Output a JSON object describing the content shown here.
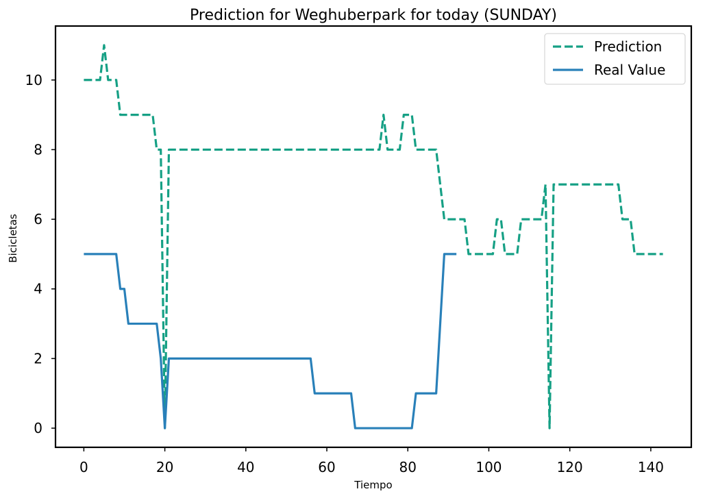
{
  "chart_data": {
    "type": "line",
    "title": "Prediction for Weghuberpark for today (SUNDAY)",
    "xlabel": "Tiempo",
    "ylabel": "Bicicletas",
    "xlim": [
      -7,
      150
    ],
    "ylim": [
      -0.55,
      11.55
    ],
    "xticks": [
      0,
      20,
      40,
      60,
      80,
      100,
      120,
      140
    ],
    "yticks": [
      0,
      2,
      4,
      6,
      8,
      10
    ],
    "grid": false,
    "legend_position": "top-right",
    "series": [
      {
        "name": "Prediction",
        "color": "#16a085",
        "style": "dashed",
        "points": [
          [
            0,
            10
          ],
          [
            4,
            10
          ],
          [
            5,
            11
          ],
          [
            6,
            10
          ],
          [
            8,
            10
          ],
          [
            9,
            9
          ],
          [
            17,
            9
          ],
          [
            18,
            8
          ],
          [
            19,
            8
          ],
          [
            20,
            0
          ],
          [
            21,
            8
          ],
          [
            73,
            8
          ],
          [
            74,
            9
          ],
          [
            75,
            8
          ],
          [
            78,
            8
          ],
          [
            79,
            9
          ],
          [
            81,
            9
          ],
          [
            82,
            8
          ],
          [
            87,
            8
          ],
          [
            89,
            6
          ],
          [
            94,
            6
          ],
          [
            95,
            5
          ],
          [
            101,
            5
          ],
          [
            102,
            6
          ],
          [
            103,
            6
          ],
          [
            104,
            5
          ],
          [
            107,
            5
          ],
          [
            108,
            6
          ],
          [
            112,
            6
          ],
          [
            113,
            6
          ],
          [
            114,
            7
          ],
          [
            115,
            0
          ],
          [
            116,
            7
          ],
          [
            132,
            7
          ],
          [
            133,
            6
          ],
          [
            135,
            6
          ],
          [
            136,
            5
          ],
          [
            143,
            5
          ]
        ]
      },
      {
        "name": "Real Value",
        "color": "#2980b9",
        "style": "solid",
        "points": [
          [
            0,
            5
          ],
          [
            8,
            5
          ],
          [
            9,
            4
          ],
          [
            10,
            4
          ],
          [
            11,
            3
          ],
          [
            18,
            3
          ],
          [
            19,
            2
          ],
          [
            20,
            0
          ],
          [
            21,
            2
          ],
          [
            56,
            2
          ],
          [
            57,
            1
          ],
          [
            66,
            1
          ],
          [
            67,
            0
          ],
          [
            81,
            0
          ],
          [
            82,
            1
          ],
          [
            87,
            1
          ],
          [
            89,
            5
          ],
          [
            92,
            5
          ]
        ]
      }
    ]
  }
}
